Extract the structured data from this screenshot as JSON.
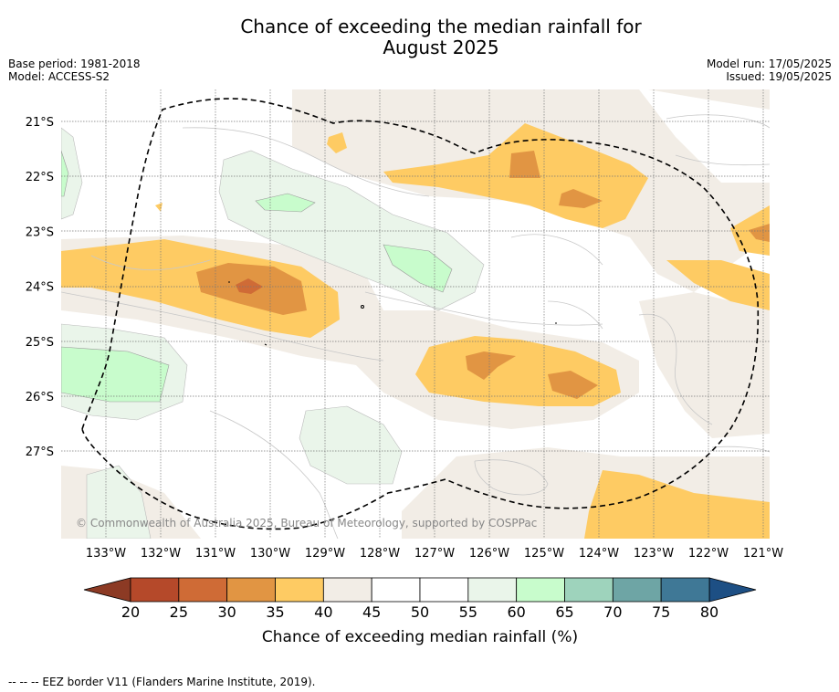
{
  "title_line1": "Chance of exceeding the median rainfall for",
  "title_line2": "August 2025",
  "base_period": "Base period: 1981-2018",
  "model": "Model: ACCESS-S2",
  "model_run": "Model run: 17/05/2025",
  "issued": "Issued: 19/05/2025",
  "copyright": "© Commonwealth of Australia 2025, Bureau of Meteorology, supported by COSPPac",
  "footer": "--  --  -- EEZ border V11 (Flanders Marine Institute, 2019).",
  "lat_labels": [
    "21°S",
    "22°S",
    "23°S",
    "24°S",
    "25°S",
    "26°S",
    "27°S"
  ],
  "lon_labels": [
    "133°W",
    "132°W",
    "131°W",
    "130°W",
    "129°W",
    "128°W",
    "127°W",
    "126°W",
    "125°W",
    "124°W",
    "123°W",
    "122°W",
    "121°W"
  ],
  "colorbar": {
    "title": "Chance of exceeding median rainfall (%)",
    "ticks": [
      "20",
      "25",
      "30",
      "35",
      "40",
      "45",
      "50",
      "55",
      "60",
      "65",
      "70",
      "75",
      "80"
    ],
    "colors": [
      "#b5492a",
      "#cf6b36",
      "#e19543",
      "#fecb63",
      "#f2ede6",
      "#ffffff",
      "#ffffff",
      "#eaf5ea",
      "#c8fccc",
      "#9ed3bc",
      "#6ea5a5",
      "#3f7896"
    ],
    "low_extend_color": "#8c3a24",
    "high_extend_color": "#1d4f84"
  }
}
